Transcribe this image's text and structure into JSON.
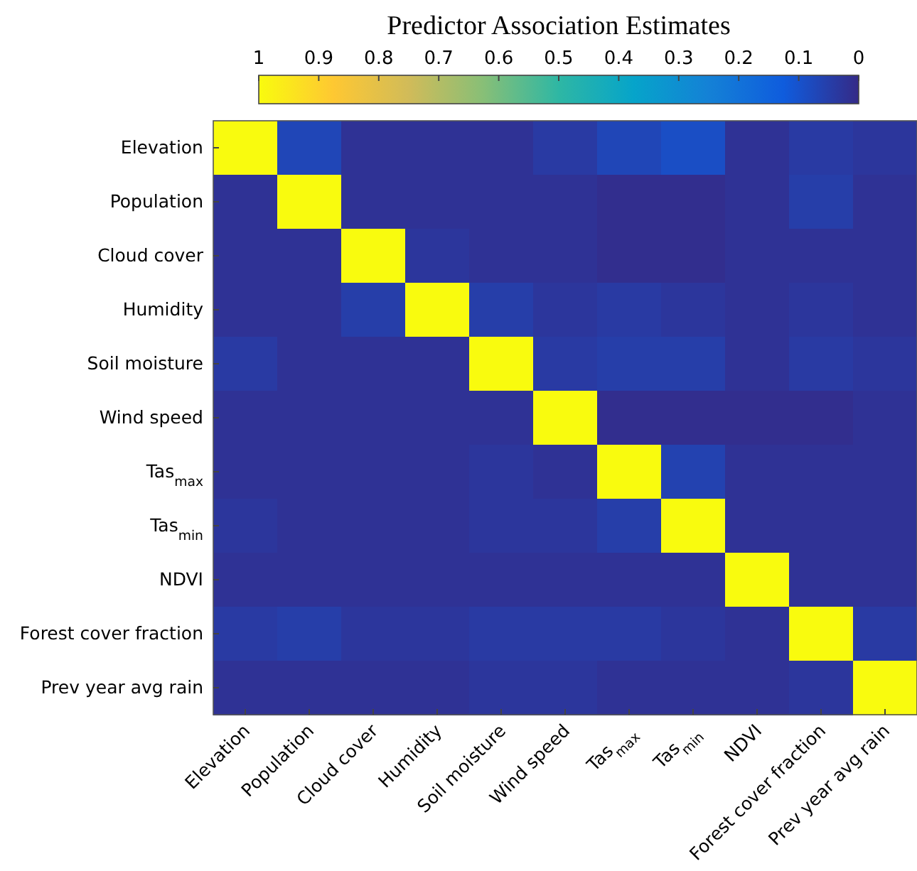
{
  "chart_data": {
    "type": "heatmap",
    "title": "Predictor Association Estimates",
    "categories": [
      "Elevation",
      "Population",
      "Cloud cover",
      "Humidity",
      "Soil moisture",
      "Wind speed",
      "Tas$_{max}$",
      "Tas$_{min}$",
      "NDVI",
      "Forest cover fraction",
      "Prev year avg rain"
    ],
    "y_categories": [
      "Elevation",
      "Population",
      "Cloud cover",
      "Humidity",
      "Soil moisture",
      "Wind speed",
      "Tas$_{max}$",
      "Tas$_{min}$",
      "NDVI",
      "Forest cover fraction",
      "Prev year avg rain"
    ],
    "cells": [
      [
        1,
        0.07,
        0.02,
        0.02,
        0.02,
        0.04,
        0.07,
        0.09,
        0.02,
        0.04,
        0.03
      ],
      [
        0.02,
        1,
        0.02,
        0.02,
        0.02,
        0.02,
        0.01,
        0.01,
        0.02,
        0.05,
        0.02
      ],
      [
        0.02,
        0.02,
        1,
        0.03,
        0.02,
        0.02,
        0.01,
        0.01,
        0.02,
        0.02,
        0.02
      ],
      [
        0.02,
        0.02,
        0.05,
        1,
        0.05,
        0.03,
        0.04,
        0.03,
        0.02,
        0.03,
        0.02
      ],
      [
        0.04,
        0.02,
        0.02,
        0.02,
        1,
        0.04,
        0.05,
        0.05,
        0.02,
        0.04,
        0.03
      ],
      [
        0.02,
        0.02,
        0.02,
        0.02,
        0.02,
        1,
        0.01,
        0.01,
        0.01,
        0.01,
        0.02
      ],
      [
        0.02,
        0.02,
        0.02,
        0.02,
        0.03,
        0.02,
        1,
        0.06,
        0.02,
        0.02,
        0.02
      ],
      [
        0.03,
        0.02,
        0.02,
        0.02,
        0.03,
        0.03,
        0.05,
        1,
        0.02,
        0.02,
        0.02
      ],
      [
        0.02,
        0.02,
        0.02,
        0.02,
        0.02,
        0.02,
        0.02,
        0.02,
        1,
        0.02,
        0.02
      ],
      [
        0.04,
        0.05,
        0.03,
        0.03,
        0.04,
        0.04,
        0.04,
        0.03,
        0.02,
        1,
        0.04
      ],
      [
        0.02,
        0.02,
        0.02,
        0.02,
        0.03,
        0.03,
        0.02,
        0.02,
        0.02,
        0.03,
        1
      ]
    ],
    "clim": [
      1,
      0
    ],
    "cticks": [
      1,
      0.9,
      0.8,
      0.7,
      0.6,
      0.5,
      0.4,
      0.3,
      0.2,
      0.1,
      0
    ]
  }
}
